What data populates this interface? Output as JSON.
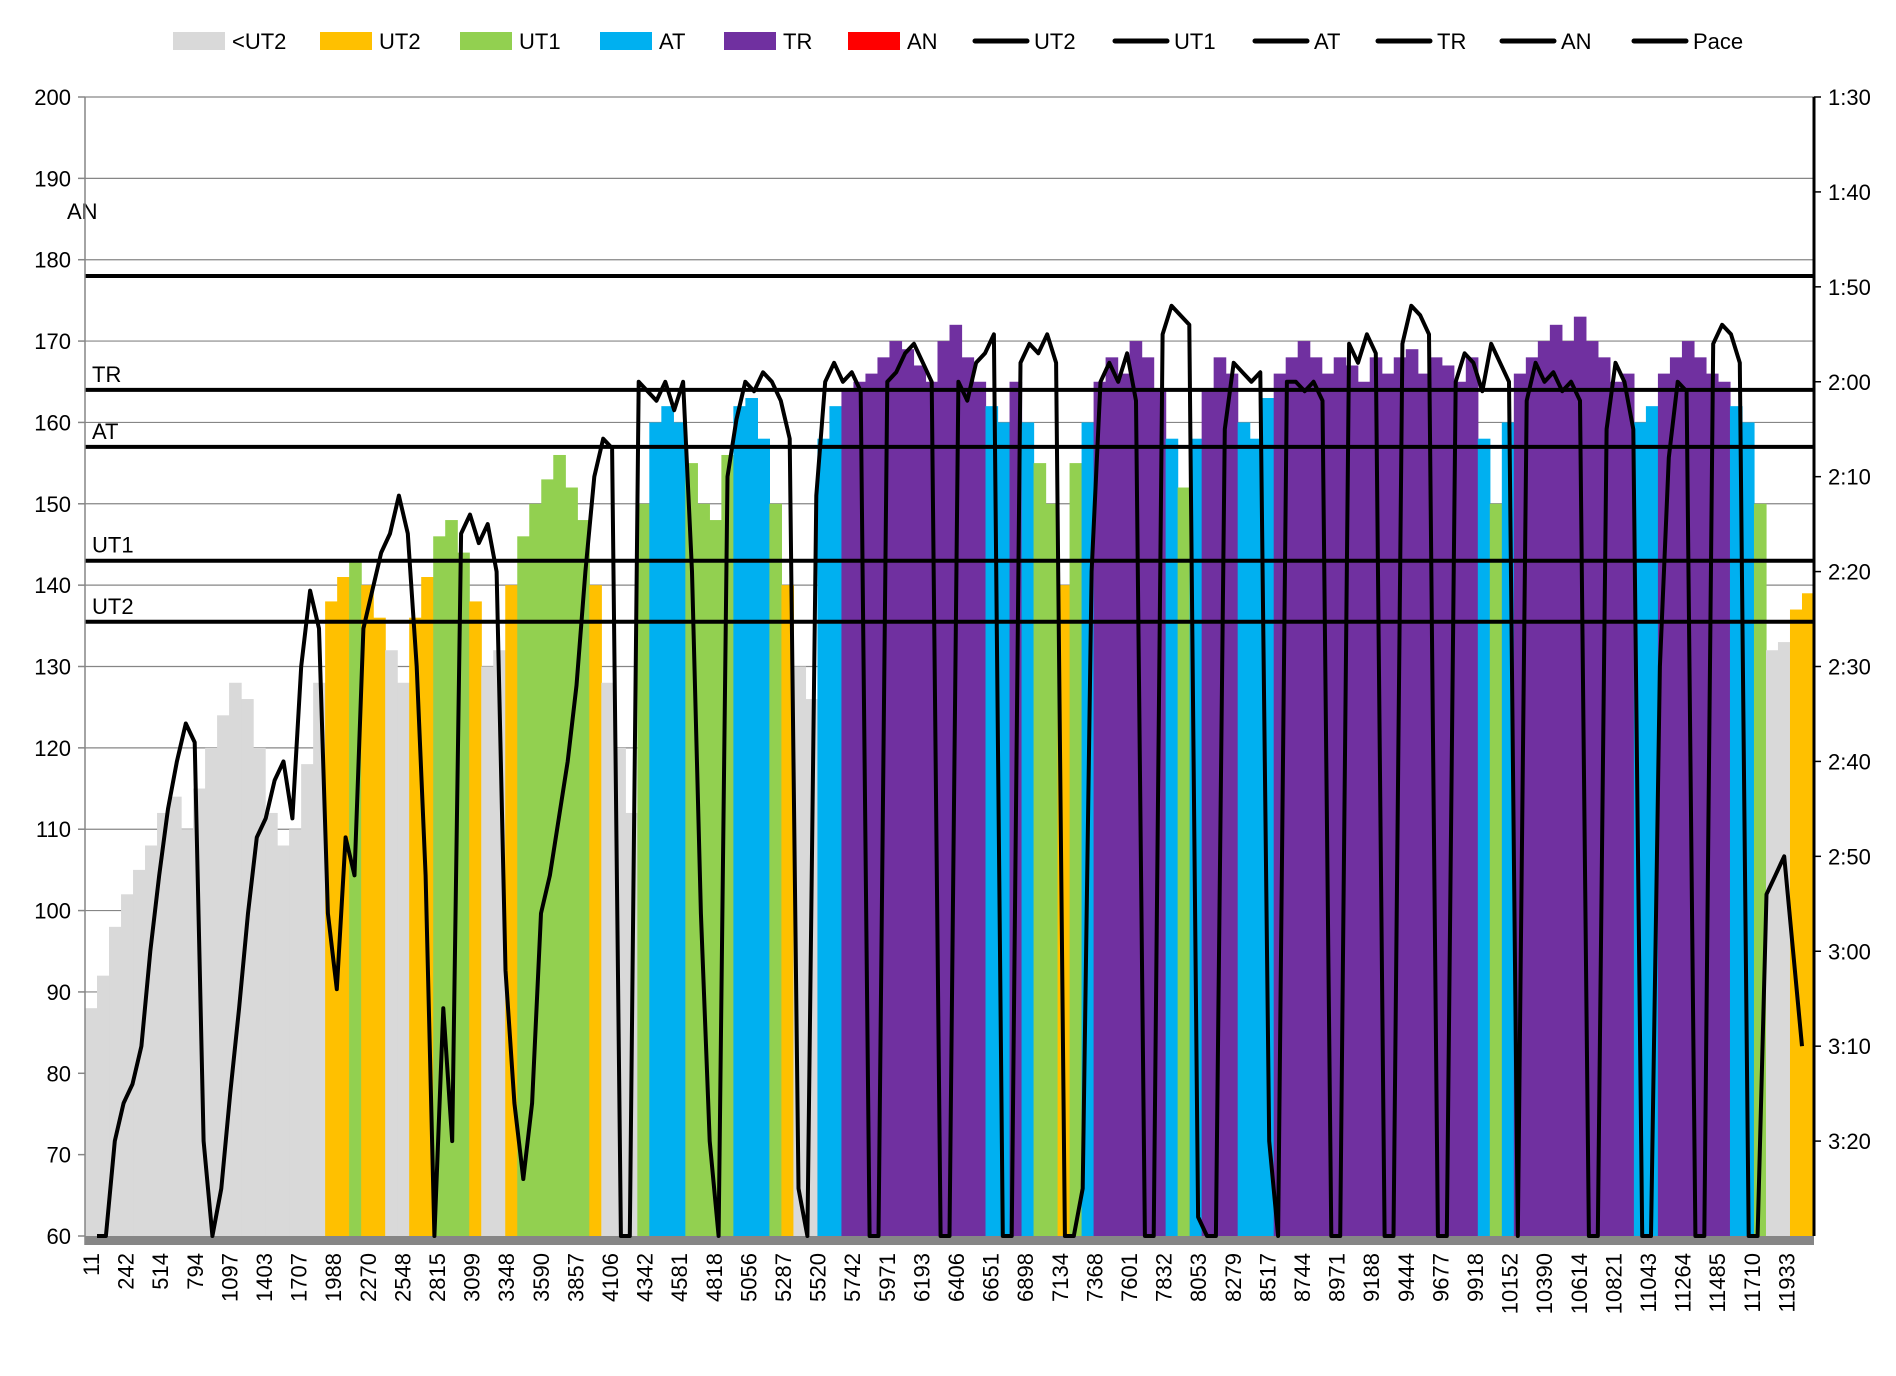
{
  "chart_data": {
    "type": "bar",
    "title": "",
    "xlabel": "",
    "ylabel": "",
    "y_left_range": [
      60,
      200
    ],
    "y_left_ticks": [
      60,
      70,
      80,
      90,
      100,
      110,
      120,
      130,
      140,
      150,
      160,
      170,
      180,
      190,
      200
    ],
    "y_right_ticks_seconds": [
      90,
      100,
      110,
      120,
      130,
      140,
      150,
      160,
      170,
      180,
      190,
      200
    ],
    "y_right_tick_labels": [
      "1:30",
      "1:40",
      "1:50",
      "2:00",
      "2:10",
      "2:20",
      "2:30",
      "2:40",
      "2:50",
      "3:00",
      "3:10",
      "3:20"
    ],
    "y_right_range_seconds": [
      90,
      210
    ],
    "grid": true,
    "legend_placement": "top",
    "x_tick_labels": [
      "11",
      "242",
      "514",
      "794",
      "1097",
      "1403",
      "1707",
      "1988",
      "2270",
      "2548",
      "2815",
      "3099",
      "3348",
      "3590",
      "3857",
      "4106",
      "4342",
      "4581",
      "4818",
      "5056",
      "5287",
      "5520",
      "5742",
      "5971",
      "6193",
      "6406",
      "6651",
      "6898",
      "7134",
      "7368",
      "7601",
      "7832",
      "8053",
      "8279",
      "8517",
      "8744",
      "8971",
      "9188",
      "9444",
      "9677",
      "9918",
      "10152",
      "10390",
      "10614",
      "10821",
      "11043",
      "11264",
      "11485",
      "11710",
      "11933"
    ],
    "zones": [
      {
        "name": "<UT2",
        "color": "#d9d9d9"
      },
      {
        "name": "UT2",
        "color": "#ffc000",
        "threshold": 135.5
      },
      {
        "name": "UT1",
        "color": "#92d050",
        "threshold": 143
      },
      {
        "name": "AT",
        "color": "#00b0f0",
        "threshold": 157
      },
      {
        "name": "TR",
        "color": "#7030a0",
        "threshold": 164
      },
      {
        "name": "AN",
        "color": "#ff0000",
        "threshold": 178
      }
    ],
    "legend": [
      "<UT2",
      "UT2",
      "UT1",
      "AT",
      "TR",
      "AN",
      "UT2",
      "UT1",
      "AT",
      "TR",
      "AN",
      "Pace"
    ],
    "threshold_labels": [
      "AN",
      "TR",
      "AT",
      "UT1",
      "UT2"
    ],
    "heart_rate": [
      88,
      92,
      98,
      102,
      105,
      108,
      112,
      114,
      110,
      115,
      120,
      124,
      128,
      126,
      120,
      112,
      108,
      110,
      118,
      128,
      138,
      141,
      143,
      140,
      136,
      132,
      128,
      136,
      141,
      146,
      148,
      144,
      138,
      130,
      132,
      140,
      146,
      150,
      153,
      156,
      152,
      148,
      140,
      128,
      120,
      112,
      150,
      160,
      162,
      160,
      155,
      150,
      148,
      156,
      162,
      163,
      158,
      150,
      140,
      130,
      126,
      158,
      162,
      164,
      165,
      166,
      168,
      170,
      169,
      167,
      165,
      170,
      172,
      168,
      165,
      162,
      160,
      165,
      160,
      155,
      150,
      140,
      155,
      160,
      165,
      168,
      166,
      170,
      168,
      164,
      158,
      152,
      158,
      164,
      168,
      166,
      160,
      158,
      163,
      166,
      168,
      170,
      168,
      166,
      168,
      167,
      165,
      168,
      166,
      168,
      169,
      166,
      168,
      167,
      165,
      168,
      158,
      150,
      160,
      166,
      168,
      170,
      172,
      170,
      173,
      170,
      168,
      165,
      166,
      160,
      162,
      166,
      168,
      170,
      168,
      166,
      165,
      162,
      160,
      150,
      132,
      133,
      137,
      139
    ],
    "pace_seconds": [
      210,
      210,
      200,
      196,
      194,
      190,
      180,
      172,
      165,
      160,
      156,
      158,
      200,
      218,
      205,
      195,
      186,
      176,
      168,
      166,
      162,
      160,
      166,
      150,
      142,
      146,
      176,
      184,
      168,
      172,
      146,
      142,
      138,
      136,
      132,
      136,
      150,
      172,
      212,
      186,
      200,
      136,
      134,
      137,
      135,
      140,
      182,
      196,
      204,
      196,
      176,
      172,
      166,
      160,
      152,
      140,
      130,
      126,
      127,
      210,
      210,
      120,
      121,
      122,
      120,
      123,
      120,
      140,
      176,
      200,
      210,
      130,
      124,
      120,
      121,
      119,
      120,
      122,
      126,
      205,
      210,
      132,
      120,
      118,
      120,
      119,
      121,
      210,
      210,
      120,
      119,
      117,
      116,
      118,
      120,
      210,
      210,
      120,
      122,
      118,
      117,
      115,
      210,
      210,
      118,
      116,
      117,
      115,
      118,
      210,
      210,
      205,
      140,
      120,
      118,
      120,
      117,
      122,
      210,
      210,
      115,
      112,
      113,
      114,
      208,
      210,
      210,
      125,
      118,
      119,
      120,
      119,
      200,
      210,
      120,
      120,
      121,
      120,
      122,
      210,
      210,
      116,
      118,
      115,
      117,
      210,
      210,
      116,
      112,
      113,
      115,
      210,
      210,
      120,
      117,
      118,
      121,
      116,
      118,
      120,
      210,
      122,
      118,
      120,
      119,
      121,
      120,
      122,
      210,
      210,
      125,
      118,
      120,
      125,
      210,
      210,
      150,
      128,
      120,
      121,
      210,
      210,
      116,
      114,
      115,
      118,
      210,
      210,
      174,
      172,
      170,
      180,
      190
    ]
  }
}
